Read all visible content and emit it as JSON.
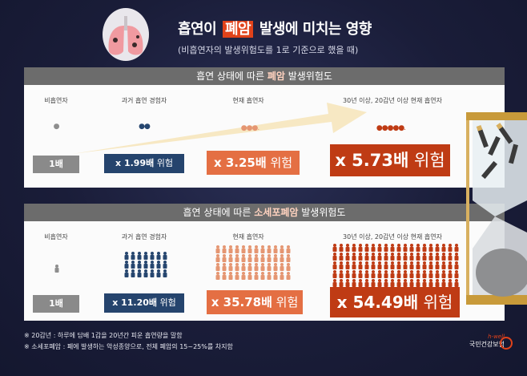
{
  "header": {
    "title_pre": "흡연이 ",
    "title_highlight": "폐암",
    "title_post": " 발생에 미치는 영향",
    "subtitle": "(비흡연자의 발생위험도를 1로 기준으로 했을 때)"
  },
  "panel1": {
    "heading_pre": "흡연 상태에 따른 ",
    "heading_bold": "폐암",
    "heading_post": " 발생위험도",
    "columns": [
      {
        "label": "비흡연자",
        "icons": "●",
        "value": "1배",
        "suffix": ""
      },
      {
        "label": "과거 흡연 경험자",
        "icons": "●●",
        "value": "x 1.99배",
        "suffix": " 위험"
      },
      {
        "label": "현재 흡연자",
        "icons": "●●●.",
        "value": "x 3.25배",
        "suffix": " 위험"
      },
      {
        "label": "30년 이상, 20갑년 이상 현재 흡연자",
        "icons": "●●●●●.",
        "value": "x 5.73배",
        "suffix": " 위험"
      }
    ]
  },
  "panel2": {
    "heading_pre": "흡연 상태에 따른 ",
    "heading_bold": "소세포폐암",
    "heading_post": " 발생위험도",
    "columns": [
      {
        "label": "비흡연자",
        "value": "1배",
        "suffix": ""
      },
      {
        "label": "과거 흡연 경험자",
        "value": "x 11.20배",
        "suffix": " 위험"
      },
      {
        "label": "현재 흡연자",
        "value": "x 35.78배",
        "suffix": " 위험"
      },
      {
        "label": "30년 이상, 20갑년 이상 현재 흡연자",
        "value": "x 54.49배",
        "suffix": " 위험"
      }
    ]
  },
  "notes": [
    "※ 20갑년 : 하루에 담배 1갑을 20년간 피운 흡연량을 말함",
    "※ 소세포폐암 : 폐에 발생하는 악성종양으로, 전체 폐암의 15~25%를 차지함"
  ],
  "logo": {
    "tagline": "h-well",
    "name": "국민건강보험"
  },
  "colors": {
    "accent": "#e0421a",
    "navy": "#25446d",
    "orange": "#e46f43",
    "red": "#bf3b14",
    "gray": "#8a8a8a"
  }
}
